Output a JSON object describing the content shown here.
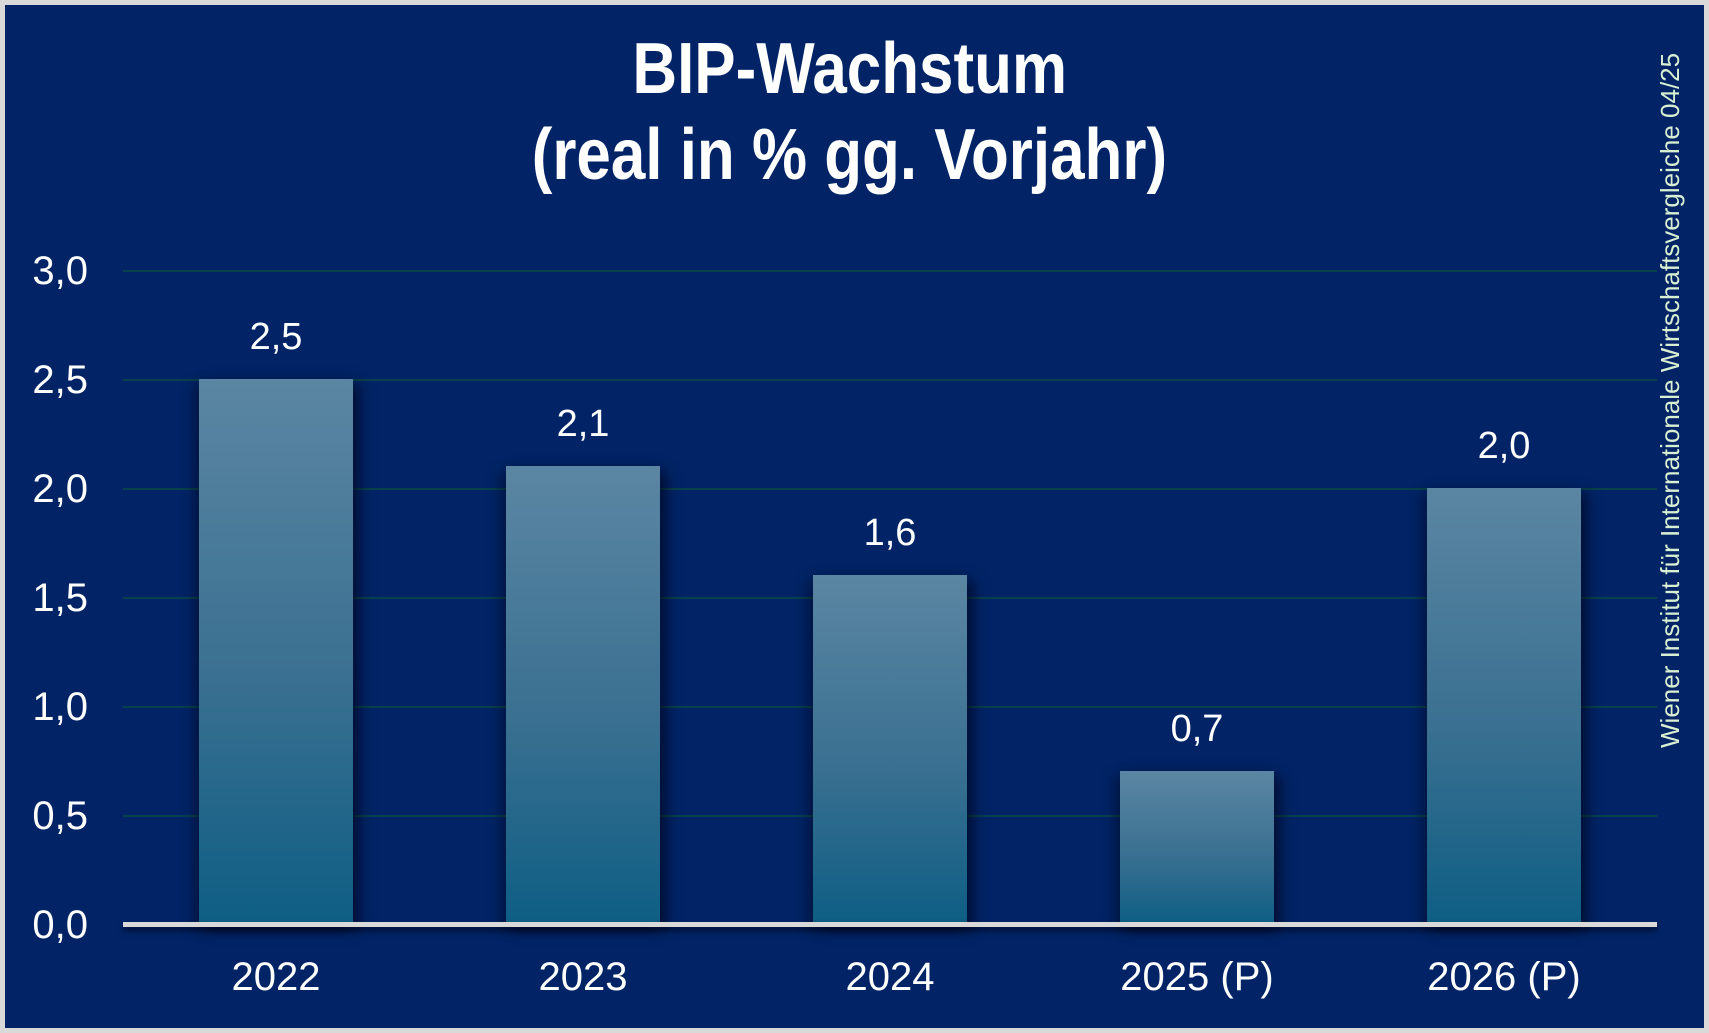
{
  "frame": {
    "background_color": "#022466",
    "border_color": "#d9d9d9"
  },
  "title": {
    "line1": "BIP-Wachstum",
    "line2": "(real in % gg. Vorjahr)"
  },
  "source_note": "Wiener Institut für Internationale Wirtschaftsvergleiche 04/25",
  "chart_data": {
    "type": "bar",
    "title": "BIP-Wachstum (real in % gg. Vorjahr)",
    "categories": [
      "2022",
      "2023",
      "2024",
      "2025 (P)",
      "2026 (P)"
    ],
    "values": [
      2.5,
      2.1,
      1.6,
      0.7,
      2.0
    ],
    "value_labels": [
      "2,5",
      "2,1",
      "1,6",
      "0,7",
      "2,0"
    ],
    "xlabel": "",
    "ylabel": "",
    "ylim": [
      0,
      3
    ],
    "ytick_step": 0.5,
    "ytick_labels": [
      "0,0",
      "0,5",
      "1,0",
      "1,5",
      "2,0",
      "2,5",
      "3,0"
    ],
    "grid": true,
    "legend": false,
    "decimal_separator": ",",
    "colors": {
      "bar_gradient_top": "#5b86a3",
      "bar_gradient_bottom": "#0e5e84",
      "gridline": "#07424c",
      "axis_line": "#d9d9d9",
      "text": "#ffffff",
      "background": "#022466",
      "source_note_text": "#d9efd2"
    }
  }
}
